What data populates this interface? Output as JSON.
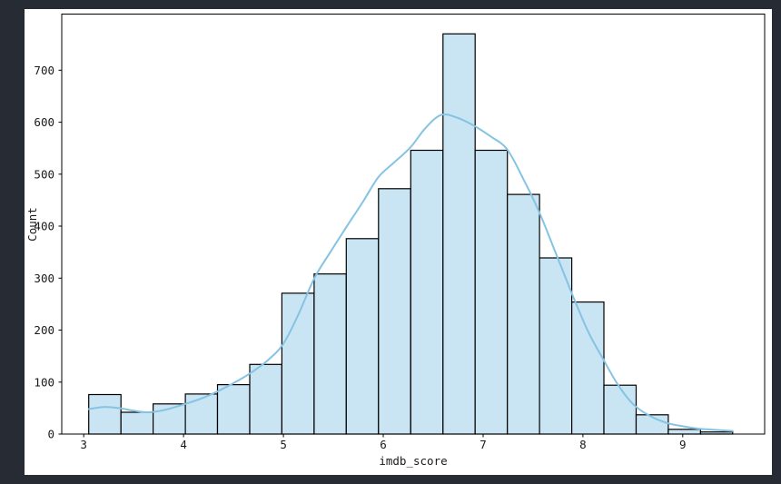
{
  "window": {
    "background_color": "#272b33",
    "figure_color": "#ffffff"
  },
  "chart_data": {
    "type": "bar",
    "subtype": "histogram_with_kde",
    "title": "",
    "xlabel": "imdb_score",
    "ylabel": "Count",
    "xlim": [
      2.78,
      9.82
    ],
    "ylim": [
      0,
      808
    ],
    "x_ticks": [
      3,
      4,
      5,
      6,
      7,
      8,
      9
    ],
    "y_ticks": [
      0,
      100,
      200,
      300,
      400,
      500,
      600,
      700
    ],
    "grid": false,
    "legend": "none",
    "bin_edges": [
      3.05,
      3.373,
      3.695,
      4.018,
      4.34,
      4.663,
      4.985,
      5.308,
      5.63,
      5.953,
      6.275,
      6.598,
      6.92,
      7.243,
      7.565,
      7.888,
      8.21,
      8.533,
      8.855,
      9.178,
      9.5
    ],
    "counts": [
      76,
      42,
      58,
      77,
      95,
      134,
      271,
      308,
      376,
      472,
      546,
      770,
      546,
      461,
      339,
      254,
      94,
      37,
      9,
      4
    ],
    "kde_x": [
      3.05,
      3.2,
      3.35,
      3.5,
      3.65,
      3.8,
      4.0,
      4.2,
      4.35,
      4.5,
      4.66,
      4.85,
      5.0,
      5.15,
      5.31,
      5.47,
      5.63,
      5.8,
      5.95,
      6.1,
      6.27,
      6.42,
      6.58,
      6.75,
      6.92,
      7.08,
      7.24,
      7.4,
      7.56,
      7.72,
      7.89,
      8.05,
      8.2,
      8.35,
      8.5,
      8.66,
      8.83,
      9.0,
      9.17,
      9.33,
      9.5
    ],
    "kde_y": [
      48,
      52,
      50,
      45,
      42,
      46,
      57,
      70,
      83,
      98,
      116,
      143,
      174,
      230,
      300,
      350,
      398,
      448,
      494,
      521,
      551,
      588,
      614,
      608,
      592,
      572,
      548,
      492,
      428,
      352,
      270,
      198,
      145,
      95,
      58,
      36,
      22,
      15,
      10,
      8,
      6
    ],
    "colors": {
      "bar_fill": "#c9e4f3",
      "bar_edge": "#000000",
      "kde_line": "#85c3e3",
      "spine": "#000000",
      "tick_text": "#1a1a1a"
    }
  }
}
